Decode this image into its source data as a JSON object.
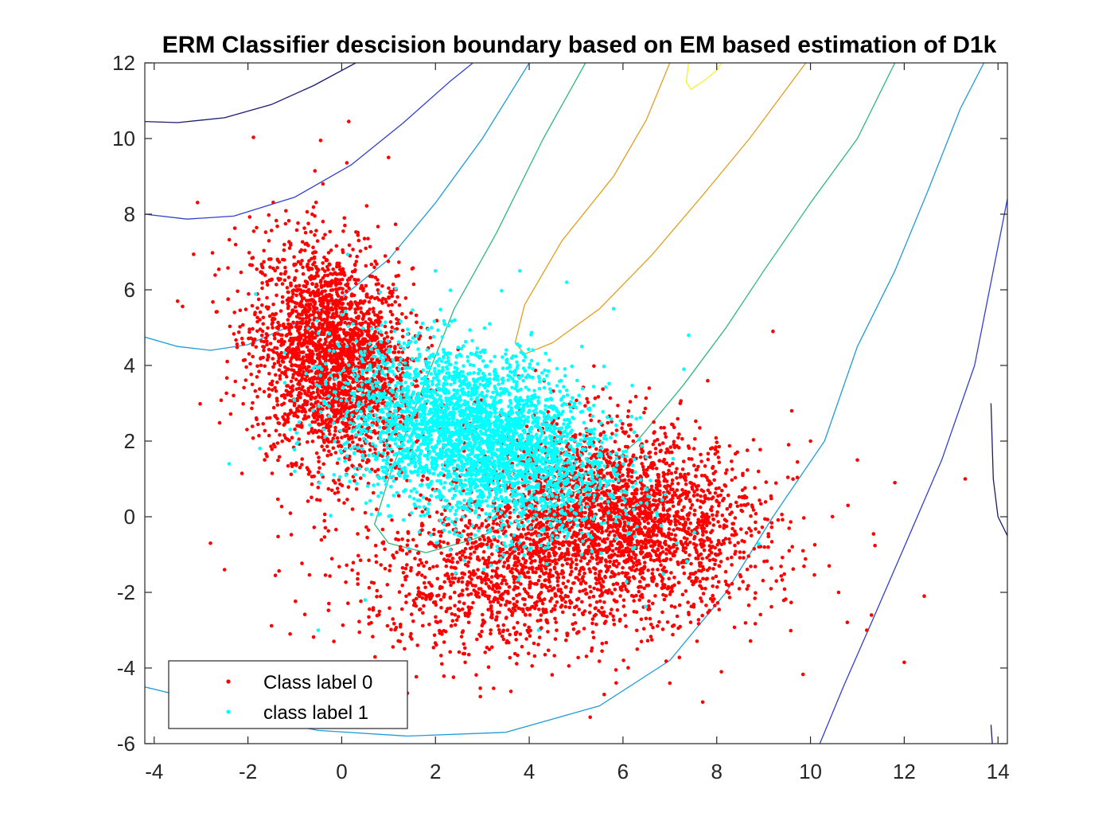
{
  "chart_data": {
    "type": "scatter",
    "title": "ERM Classifier descision boundary based on EM based estimation of D1k",
    "xlabel": "",
    "ylabel": "",
    "xlim": [
      -4.2,
      14.2
    ],
    "ylim": [
      -6,
      12
    ],
    "xticks": [
      -4,
      -2,
      0,
      2,
      4,
      6,
      8,
      10,
      12,
      14
    ],
    "yticks": [
      -6,
      -4,
      -2,
      0,
      2,
      4,
      6,
      8,
      10,
      12
    ],
    "xtick_labels": [
      "-4",
      "-2",
      "0",
      "2",
      "4",
      "6",
      "8",
      "10",
      "12",
      "14"
    ],
    "ytick_labels": [
      "-6",
      "-4",
      "-2",
      "0",
      "2",
      "4",
      "6",
      "8",
      "10",
      "12"
    ],
    "grid": false,
    "legend": {
      "position": "bottom-left",
      "entries": [
        "Class label 0",
        "class label 1"
      ]
    },
    "series": [
      {
        "name": "Class label 0",
        "color": "#ff0000",
        "clusters": [
          {
            "center": [
              -0.2,
              4.2
            ],
            "std": [
              0.85,
              1.5
            ],
            "rho": -0.2,
            "count": 2600
          },
          {
            "center": [
              6.0,
              0.0
            ],
            "std": [
              1.5,
              1.2
            ],
            "rho": -0.2,
            "count": 2400
          },
          {
            "center": [
              3.5,
              -1.5
            ],
            "std": [
              1.6,
              1.1
            ],
            "rho": 0.1,
            "count": 1200
          }
        ],
        "outliers": [
          [
            13.3,
            1.0
          ],
          [
            12.0,
            -3.85
          ],
          [
            9.2,
            4.9
          ],
          [
            0.15,
            10.45
          ],
          [
            -0.45,
            9.95
          ],
          [
            10.4,
            -1.3
          ],
          [
            11.0,
            1.5
          ],
          [
            7.7,
            -4.9
          ],
          [
            5.3,
            -5.3
          ],
          [
            5.6,
            -4.7
          ],
          [
            11.3,
            -2.6
          ],
          [
            -0.4,
            8.8
          ],
          [
            7.0,
            -4.4
          ],
          [
            -3.5,
            5.7
          ],
          [
            10.6,
            -2.0
          ],
          [
            1.0,
            9.5
          ],
          [
            -1.1,
            -3.1
          ],
          [
            11.8,
            0.9
          ],
          [
            -2.5,
            -1.4
          ],
          [
            8.1,
            -4.1
          ],
          [
            9.6,
            2.8
          ],
          [
            10.0,
            2.0
          ],
          [
            -2.8,
            -0.7
          ],
          [
            11.2,
            -3.0
          ],
          [
            10.8,
            0.3
          ]
        ]
      },
      {
        "name": "class label 1",
        "color": "#00ffff",
        "clusters": [
          {
            "center": [
              2.9,
              2.1
            ],
            "std": [
              1.4,
              1.2
            ],
            "rho": -0.35,
            "count": 3400
          }
        ],
        "outliers": [
          [
            -0.5,
            -3.0
          ],
          [
            0.5,
            -2.2
          ],
          [
            -1.0,
            1.2
          ],
          [
            -2.4,
            1.4
          ],
          [
            7.4,
            4.8
          ],
          [
            7.3,
            3.9
          ],
          [
            3.8,
            6.5
          ],
          [
            4.8,
            6.2
          ],
          [
            5.8,
            5.5
          ],
          [
            2.0,
            6.5
          ],
          [
            4.2,
            -3.0
          ]
        ]
      }
    ],
    "contours": {
      "description_levels": [
        "dark-navy",
        "blue",
        "light-blue",
        "green",
        "gold",
        "yellow"
      ],
      "lines": [
        {
          "color": "#1a1a6e",
          "points": [
            [
              -4.2,
              10.45
            ],
            [
              -3.5,
              10.42
            ],
            [
              -2.5,
              10.55
            ],
            [
              -1.5,
              10.9
            ],
            [
              -0.6,
              11.4
            ],
            [
              0.3,
              12.0
            ]
          ]
        },
        {
          "color": "#1a1a6e",
          "points": [
            [
              14.2,
              -0.5
            ],
            [
              14.0,
              0.0
            ],
            [
              13.9,
              1.0
            ],
            [
              13.85,
              3.0
            ]
          ]
        },
        {
          "color": "#1a1a6e",
          "points": [
            [
              13.85,
              -5.5
            ],
            [
              13.88,
              -6.0
            ]
          ]
        },
        {
          "color": "#3040d0",
          "points": [
            [
              -4.2,
              8.0
            ],
            [
              -3.3,
              7.87
            ],
            [
              -2.3,
              7.95
            ],
            [
              -1.0,
              8.45
            ],
            [
              0.2,
              9.3
            ],
            [
              1.3,
              10.4
            ],
            [
              2.3,
              11.5
            ],
            [
              2.8,
              12.0
            ]
          ]
        },
        {
          "color": "#3040d0",
          "points": [
            [
              10.2,
              -6.0
            ],
            [
              10.7,
              -4.5
            ],
            [
              11.3,
              -2.8
            ],
            [
              12.0,
              -0.8
            ],
            [
              12.8,
              1.5
            ],
            [
              13.5,
              4.0
            ],
            [
              14.2,
              8.4
            ]
          ]
        },
        {
          "color": "#1f9bd6",
          "points": [
            [
              -4.2,
              4.75
            ],
            [
              -3.5,
              4.5
            ],
            [
              -2.8,
              4.4
            ],
            [
              -2.0,
              4.55
            ],
            [
              -1.0,
              5.1
            ],
            [
              0.0,
              5.8
            ],
            [
              1.0,
              6.8
            ],
            [
              2.0,
              8.3
            ],
            [
              3.0,
              10.0
            ],
            [
              4.0,
              12.0
            ]
          ]
        },
        {
          "color": "#1f9bd6",
          "points": [
            [
              -4.2,
              -4.5
            ],
            [
              -3.2,
              -4.8
            ],
            [
              -2.0,
              -5.3
            ],
            [
              -0.5,
              -5.65
            ],
            [
              1.4,
              -5.8
            ],
            [
              3.5,
              -5.7
            ],
            [
              5.5,
              -5.0
            ],
            [
              7.0,
              -3.8
            ],
            [
              8.2,
              -2.0
            ],
            [
              9.2,
              0.0
            ],
            [
              10.3,
              2.0
            ],
            [
              11.0,
              4.5
            ],
            [
              11.8,
              6.5
            ],
            [
              12.5,
              8.6
            ],
            [
              13.2,
              10.8
            ],
            [
              13.7,
              12.0
            ]
          ]
        },
        {
          "color": "#2fb87a",
          "points": [
            [
              5.2,
              12.0
            ],
            [
              4.3,
              10.0
            ],
            [
              3.3,
              7.5
            ],
            [
              2.4,
              5.5
            ],
            [
              1.6,
              3.0
            ],
            [
              1.0,
              1.0
            ],
            [
              0.7,
              -0.2
            ],
            [
              1.0,
              -0.7
            ],
            [
              1.8,
              -0.95
            ],
            [
              2.8,
              -0.6
            ],
            [
              4.0,
              0.0
            ],
            [
              5.2,
              0.8
            ],
            [
              6.3,
              2.0
            ],
            [
              7.3,
              3.5
            ],
            [
              8.2,
              5.0
            ],
            [
              9.0,
              6.5
            ],
            [
              10.0,
              8.3
            ],
            [
              11.0,
              10.0
            ],
            [
              11.8,
              12.0
            ]
          ]
        },
        {
          "color": "#e0a020",
          "points": [
            [
              7.0,
              12.0
            ],
            [
              6.5,
              10.5
            ],
            [
              5.8,
              9.0
            ],
            [
              4.7,
              7.3
            ],
            [
              3.9,
              5.6
            ],
            [
              3.7,
              4.6
            ],
            [
              3.9,
              4.3
            ],
            [
              4.5,
              4.6
            ],
            [
              5.5,
              5.5
            ],
            [
              6.6,
              6.9
            ],
            [
              7.7,
              8.5
            ],
            [
              8.7,
              10.0
            ],
            [
              9.9,
              12.0
            ]
          ]
        },
        {
          "color": "#f2f230",
          "points": [
            [
              7.4,
              12.0
            ],
            [
              7.35,
              11.5
            ],
            [
              7.45,
              11.3
            ],
            [
              7.75,
              11.55
            ],
            [
              8.0,
              11.8
            ],
            [
              8.1,
              12.0
            ]
          ]
        }
      ]
    }
  }
}
